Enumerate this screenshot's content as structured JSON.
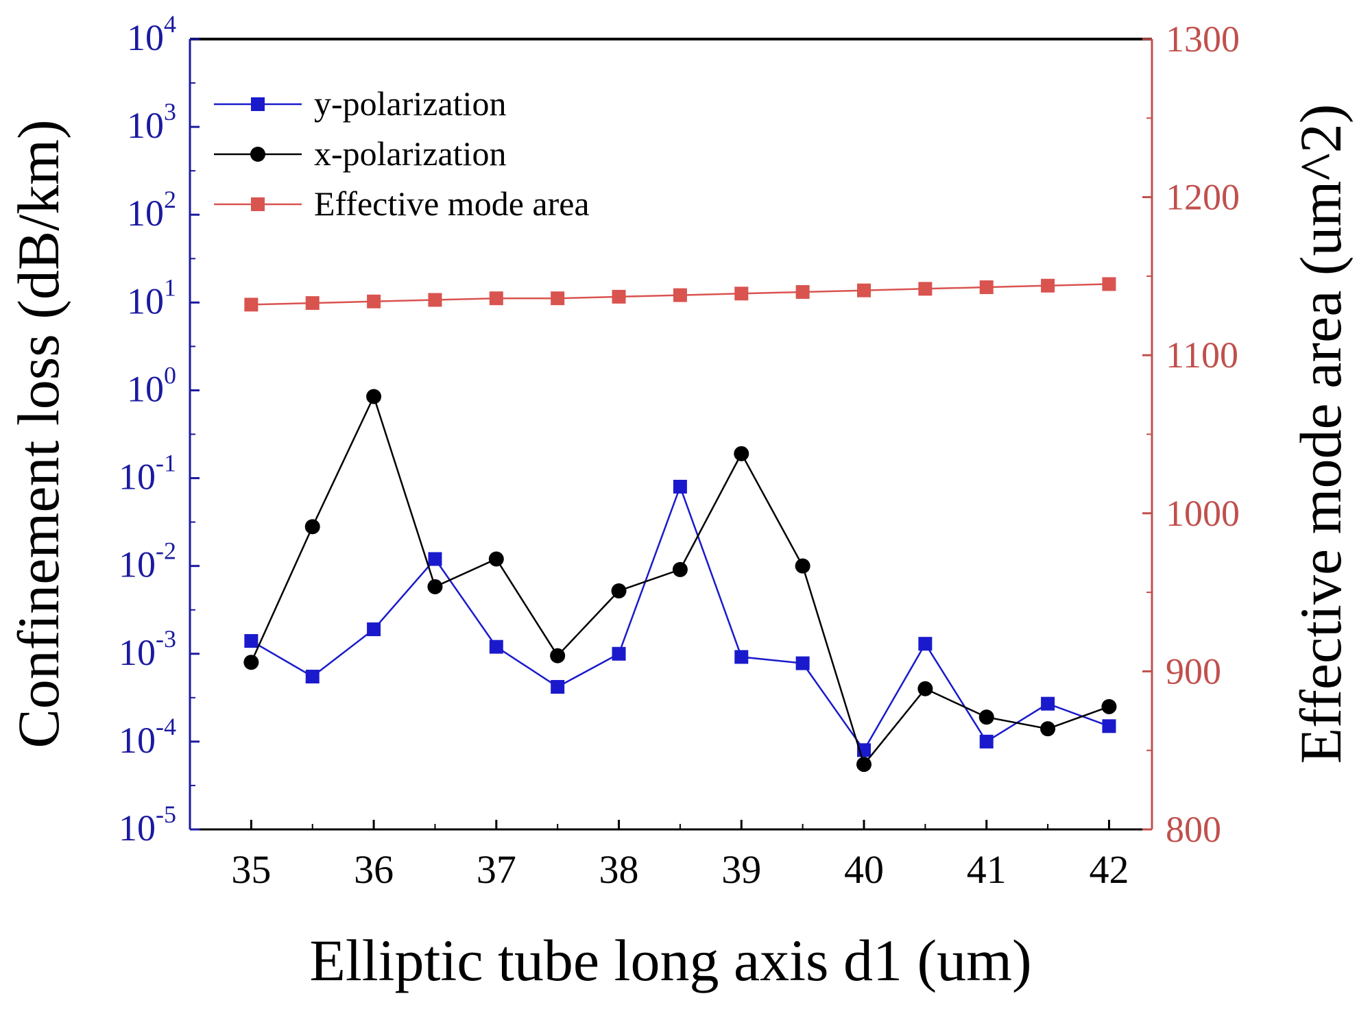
{
  "chart_data": {
    "type": "line",
    "x": [
      35,
      35.5,
      36,
      36.5,
      37,
      37.5,
      38,
      38.5,
      39,
      39.5,
      40,
      40.5,
      41,
      41.5,
      42
    ],
    "x_ticks": [
      35,
      36,
      37,
      38,
      39,
      40,
      41,
      42
    ],
    "xlim": [
      34.5,
      42.35
    ],
    "xlabel": "Elliptic tube long axis d1 (um)",
    "y_left": {
      "label": "Confinement loss (dB/km)",
      "scale": "log",
      "lim": [
        1e-05,
        10000
      ],
      "tick_exponents": [
        -5,
        -4,
        -3,
        -2,
        -1,
        0,
        1,
        2,
        3,
        4
      ],
      "color": "#1a1aa0"
    },
    "y_right": {
      "label": "Effective mode area (um^2)",
      "scale": "linear",
      "lim": [
        800,
        1300
      ],
      "ticks": [
        800,
        900,
        1000,
        1100,
        1200,
        1300
      ],
      "color": "#c0504d"
    },
    "series": [
      {
        "name": "y-polarization",
        "axis": "left",
        "marker": "square",
        "color": "#1a1acc",
        "values": [
          0.0014,
          0.00055,
          0.0019,
          0.012,
          0.0012,
          0.00042,
          0.001,
          0.08,
          0.00092,
          0.00078,
          8e-05,
          0.0013,
          0.0001,
          0.00027,
          0.00015
        ]
      },
      {
        "name": "x-polarization",
        "axis": "left",
        "marker": "circle",
        "color": "#000000",
        "values": [
          0.0008,
          0.028,
          0.85,
          0.0058,
          0.012,
          0.00095,
          0.0052,
          0.0091,
          0.19,
          0.01,
          5.5e-05,
          0.0004,
          0.00019,
          0.00014,
          0.00025
        ]
      },
      {
        "name": "Effective mode area",
        "axis": "right",
        "marker": "square",
        "color": "#d9534f",
        "values": [
          1132,
          1133,
          1134,
          1135,
          1136,
          1136,
          1137,
          1138,
          1139,
          1140,
          1141,
          1142,
          1143,
          1144,
          1145
        ]
      }
    ],
    "legend": {
      "position": "top-left",
      "entries": [
        "y-polarization",
        "x-polarization",
        "Effective mode area"
      ]
    }
  }
}
